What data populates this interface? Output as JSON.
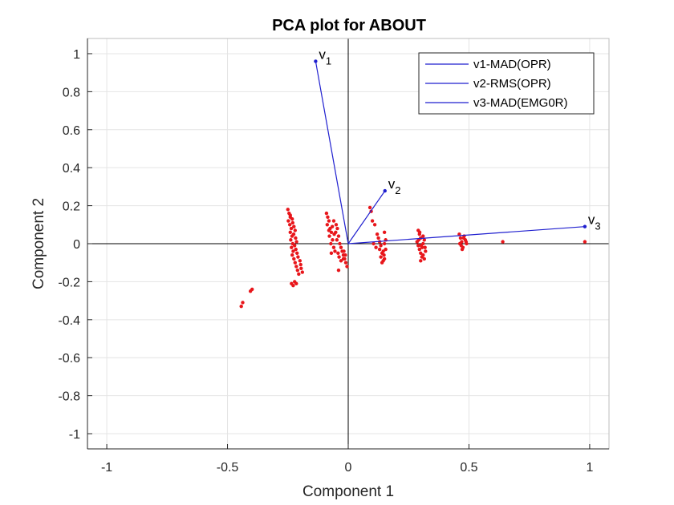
{
  "chart_data": {
    "type": "scatter",
    "title": "PCA plot for ABOUT",
    "xlabel": "Component 1",
    "ylabel": "Component 2",
    "xlim": [
      -1.08,
      1.08
    ],
    "ylim": [
      -1.08,
      1.08
    ],
    "xticks": [
      {
        "v": -1,
        "label": "-1"
      },
      {
        "v": -0.5,
        "label": "-0.5"
      },
      {
        "v": 0,
        "label": "0"
      },
      {
        "v": 0.5,
        "label": "0.5"
      },
      {
        "v": 1,
        "label": "1"
      }
    ],
    "yticks": [
      {
        "v": 1,
        "label": "1"
      },
      {
        "v": 0.8,
        "label": "0.8"
      },
      {
        "v": 0.6,
        "label": "0.6"
      },
      {
        "v": 0.4,
        "label": "0.4"
      },
      {
        "v": 0.2,
        "label": "0.2"
      },
      {
        "v": 0,
        "label": "0"
      },
      {
        "v": -0.2,
        "label": "-0.2"
      },
      {
        "v": -0.4,
        "label": "-0.4"
      },
      {
        "v": -0.6,
        "label": "-0.6"
      },
      {
        "v": -0.8,
        "label": "-0.8"
      },
      {
        "v": -1,
        "label": "-1"
      }
    ],
    "grid": true,
    "legend_position": "top-right",
    "colors": {
      "points": "#e8161b",
      "vectors": "#1f1fcf",
      "axes": "#262626",
      "grid": "#e4e4e4",
      "zero_lines": "#000000"
    },
    "vectors": [
      {
        "name": "v1-MAD(OPR)",
        "label": "v",
        "sub": "1",
        "x": -0.135,
        "y": 0.96
      },
      {
        "name": "v2-RMS(OPR)",
        "label": "v",
        "sub": "2",
        "x": 0.152,
        "y": 0.278
      },
      {
        "name": "v3-MAD(EMG0R)",
        "label": "v",
        "sub": "3",
        "x": 0.98,
        "y": 0.09
      }
    ],
    "points": [
      [
        -0.443,
        -0.33
      ],
      [
        -0.437,
        -0.31
      ],
      [
        -0.405,
        -0.25
      ],
      [
        -0.398,
        -0.24
      ],
      [
        -0.25,
        0.18
      ],
      [
        -0.245,
        0.16
      ],
      [
        -0.24,
        0.14
      ],
      [
        -0.248,
        0.12
      ],
      [
        -0.242,
        0.1
      ],
      [
        -0.236,
        0.08
      ],
      [
        -0.24,
        0.06
      ],
      [
        -0.233,
        0.04
      ],
      [
        -0.238,
        0.02
      ],
      [
        -0.23,
        0.0
      ],
      [
        -0.235,
        -0.02
      ],
      [
        -0.228,
        -0.04
      ],
      [
        -0.232,
        -0.06
      ],
      [
        -0.225,
        -0.08
      ],
      [
        -0.22,
        -0.1
      ],
      [
        -0.215,
        -0.12
      ],
      [
        -0.21,
        -0.14
      ],
      [
        -0.205,
        -0.16
      ],
      [
        -0.23,
        0.11
      ],
      [
        -0.225,
        0.09
      ],
      [
        -0.232,
        0.13
      ],
      [
        -0.22,
        0.07
      ],
      [
        -0.226,
        0.05
      ],
      [
        -0.218,
        0.03
      ],
      [
        -0.214,
        0.01
      ],
      [
        -0.222,
        -0.01
      ],
      [
        -0.217,
        -0.03
      ],
      [
        -0.212,
        -0.05
      ],
      [
        -0.208,
        -0.07
      ],
      [
        -0.2,
        -0.09
      ],
      [
        -0.197,
        -0.11
      ],
      [
        -0.195,
        -0.13
      ],
      [
        -0.19,
        -0.15
      ],
      [
        -0.235,
        -0.21
      ],
      [
        -0.228,
        -0.22
      ],
      [
        -0.222,
        -0.2
      ],
      [
        -0.215,
        -0.21
      ],
      [
        -0.24,
        0.15
      ],
      [
        -0.09,
        0.16
      ],
      [
        -0.085,
        0.14
      ],
      [
        -0.08,
        0.12
      ],
      [
        -0.087,
        0.1
      ],
      [
        -0.075,
        0.08
      ],
      [
        -0.07,
        0.06
      ],
      [
        -0.078,
        0.04
      ],
      [
        -0.065,
        0.02
      ],
      [
        -0.072,
        0.0
      ],
      [
        -0.06,
        -0.02
      ],
      [
        -0.055,
        -0.04
      ],
      [
        -0.05,
        0.1
      ],
      [
        -0.045,
        0.08
      ],
      [
        -0.052,
        0.06
      ],
      [
        -0.04,
        0.04
      ],
      [
        -0.047,
        0.02
      ],
      [
        -0.035,
        0.0
      ],
      [
        -0.03,
        -0.02
      ],
      [
        -0.025,
        -0.04
      ],
      [
        -0.02,
        -0.06
      ],
      [
        -0.015,
        -0.08
      ],
      [
        -0.01,
        -0.1
      ],
      [
        -0.005,
        -0.12
      ],
      [
        -0.06,
        0.12
      ],
      [
        -0.066,
        0.09
      ],
      [
        -0.058,
        0.05
      ],
      [
        -0.042,
        -0.05
      ],
      [
        -0.038,
        -0.07
      ],
      [
        -0.03,
        -0.09
      ],
      [
        -0.02,
        -0.08
      ],
      [
        -0.012,
        -0.06
      ],
      [
        -0.018,
        -0.04
      ],
      [
        -0.04,
        -0.14
      ],
      [
        -0.07,
        -0.05
      ],
      [
        -0.08,
        0.07
      ],
      [
        0.09,
        0.19
      ],
      [
        0.095,
        0.17
      ],
      [
        0.1,
        0.12
      ],
      [
        0.11,
        0.1
      ],
      [
        0.105,
        0.0
      ],
      [
        0.115,
        -0.02
      ],
      [
        0.12,
        0.05
      ],
      [
        0.125,
        0.03
      ],
      [
        0.13,
        0.01
      ],
      [
        0.135,
        -0.01
      ],
      [
        0.13,
        -0.03
      ],
      [
        0.14,
        -0.05
      ],
      [
        0.135,
        -0.07
      ],
      [
        0.145,
        -0.09
      ],
      [
        0.14,
        -0.1
      ],
      [
        0.15,
        -0.08
      ],
      [
        0.145,
        -0.04
      ],
      [
        0.15,
        0.06
      ],
      [
        0.155,
        0.02
      ],
      [
        0.15,
        0.0
      ],
      [
        0.155,
        -0.03
      ],
      [
        0.148,
        -0.06
      ],
      [
        0.29,
        0.07
      ],
      [
        0.295,
        0.05
      ],
      [
        0.3,
        0.03
      ],
      [
        0.285,
        0.01
      ],
      [
        0.29,
        -0.01
      ],
      [
        0.295,
        -0.03
      ],
      [
        0.3,
        -0.05
      ],
      [
        0.305,
        -0.07
      ],
      [
        0.3,
        -0.09
      ],
      [
        0.31,
        0.04
      ],
      [
        0.315,
        0.02
      ],
      [
        0.31,
        0.0
      ],
      [
        0.318,
        -0.02
      ],
      [
        0.32,
        -0.04
      ],
      [
        0.31,
        -0.06
      ],
      [
        0.315,
        -0.08
      ],
      [
        0.296,
        0.06
      ],
      [
        0.306,
        -0.02
      ],
      [
        0.302,
        -0.01
      ],
      [
        0.292,
        0.02
      ],
      [
        0.46,
        0.05
      ],
      [
        0.465,
        0.03
      ],
      [
        0.47,
        0.01
      ],
      [
        0.468,
        -0.01
      ],
      [
        0.472,
        -0.03
      ],
      [
        0.48,
        0.04
      ],
      [
        0.485,
        0.02
      ],
      [
        0.49,
        0.0
      ],
      [
        0.475,
        -0.02
      ],
      [
        0.462,
        0.0
      ],
      [
        0.478,
        0.03
      ],
      [
        0.488,
        0.01
      ],
      [
        0.64,
        0.01
      ],
      [
        0.98,
        0.01
      ]
    ]
  }
}
